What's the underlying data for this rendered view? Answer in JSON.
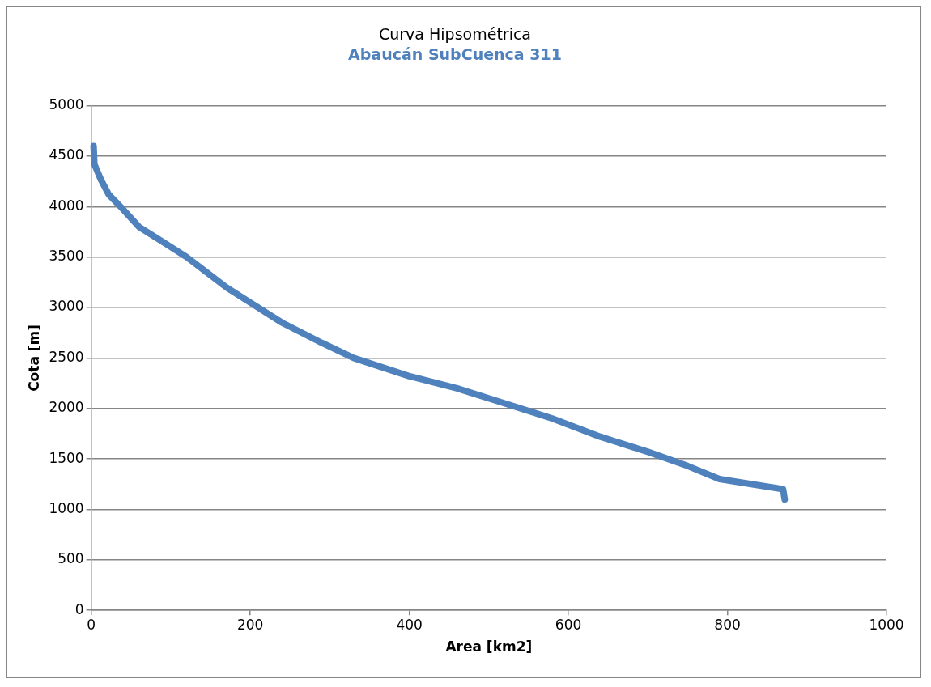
{
  "chart_data": {
    "type": "line",
    "title": "Curva Hipsométrica",
    "subtitle": "Abaucán SubCuenca 311",
    "xlabel": "Area [km2]",
    "ylabel": "Cota [m]",
    "series": [
      {
        "color": "#4f81bd",
        "x": [
          3,
          4,
          12,
          22,
          38,
          60,
          90,
          120,
          170,
          200,
          240,
          290,
          330,
          400,
          460,
          520,
          580,
          640,
          700,
          750,
          790,
          870,
          872
        ],
        "values": [
          4600,
          4420,
          4270,
          4120,
          3990,
          3800,
          3650,
          3500,
          3200,
          3050,
          2850,
          2650,
          2500,
          2320,
          2200,
          2050,
          1900,
          1720,
          1570,
          1430,
          1300,
          1200,
          1100
        ]
      }
    ],
    "xlim": [
      0,
      1000
    ],
    "xticks": [
      0,
      200,
      400,
      600,
      800,
      1000
    ],
    "ylim": [
      0,
      5000
    ],
    "yticks": [
      0,
      500,
      1000,
      1500,
      2000,
      2500,
      3000,
      3500,
      4000,
      4500,
      5000
    ],
    "grid": "y",
    "legend": false,
    "marker": "none",
    "line_style": "solid"
  }
}
